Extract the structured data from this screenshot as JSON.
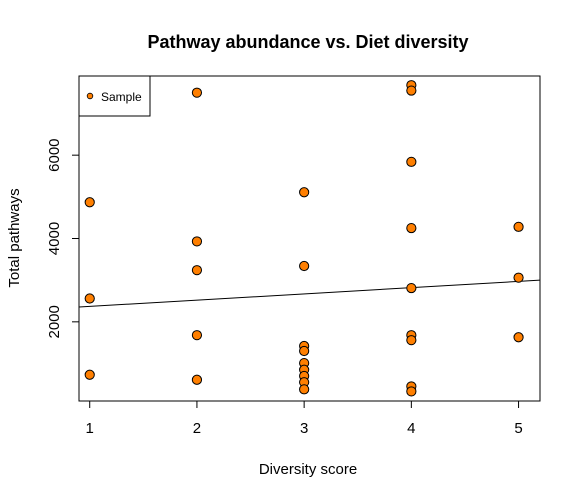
{
  "chart_data": {
    "type": "scatter",
    "title": "Pathway abundance vs. Diet diversity",
    "xlabel": "Diversity score",
    "ylabel": "Total pathways",
    "xlim": [
      0.9,
      5.2
    ],
    "ylim": [
      100,
      7900
    ],
    "xticks": [
      1,
      2,
      3,
      4,
      5
    ],
    "yticks": [
      2000,
      4000,
      6000
    ],
    "grid": false,
    "legend": {
      "position": "top-left",
      "entries": [
        "Sample"
      ]
    },
    "point_color": "#FF7F00",
    "point_edge_color": "#000000",
    "line_color": "#000000",
    "series": [
      {
        "name": "Sample",
        "points": [
          [
            1,
            4870
          ],
          [
            1,
            2560
          ],
          [
            1,
            730
          ],
          [
            2,
            7500
          ],
          [
            2,
            3930
          ],
          [
            2,
            3240
          ],
          [
            2,
            1680
          ],
          [
            2,
            610
          ],
          [
            3,
            5110
          ],
          [
            3,
            3340
          ],
          [
            3,
            1420
          ],
          [
            3,
            1300
          ],
          [
            3,
            1010
          ],
          [
            3,
            850
          ],
          [
            3,
            700
          ],
          [
            3,
            550
          ],
          [
            3,
            380
          ],
          [
            4,
            7680
          ],
          [
            4,
            7550
          ],
          [
            4,
            5840
          ],
          [
            4,
            4250
          ],
          [
            4,
            2810
          ],
          [
            4,
            1680
          ],
          [
            4,
            1560
          ],
          [
            4,
            450
          ],
          [
            4,
            330
          ],
          [
            5,
            4280
          ],
          [
            5,
            3060
          ],
          [
            5,
            1630
          ]
        ]
      }
    ],
    "regression": {
      "intercept": 2220,
      "slope": 150
    }
  }
}
